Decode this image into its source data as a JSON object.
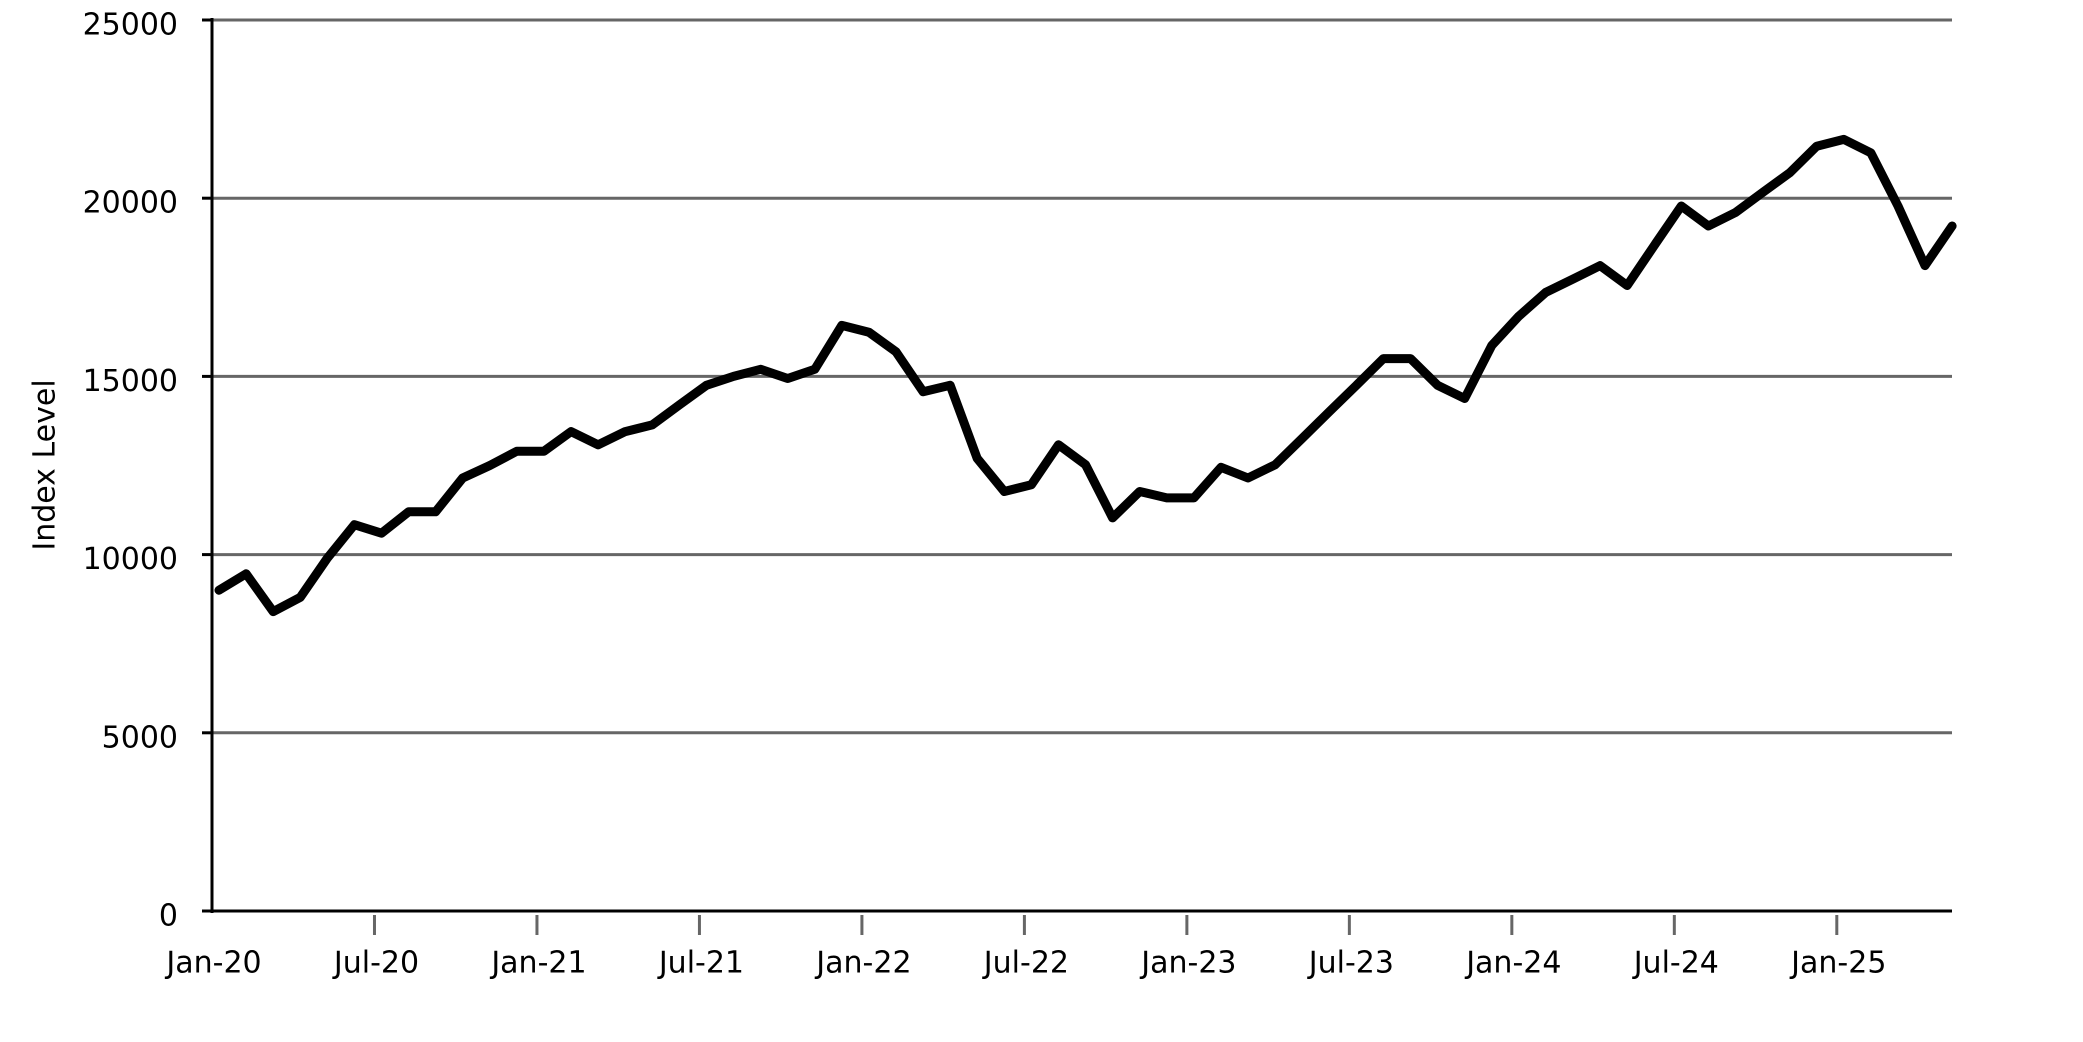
{
  "chart_data": {
    "type": "line",
    "y_label": "Index Level",
    "x": [
      "2020-01",
      "2020-02",
      "2020-03",
      "2020-04",
      "2020-05",
      "2020-06",
      "2020-07",
      "2020-08",
      "2020-09",
      "2020-10",
      "2020-11",
      "2020-12",
      "2021-01",
      "2021-02",
      "2021-03",
      "2021-04",
      "2021-05",
      "2021-06",
      "2021-07",
      "2021-08",
      "2021-09",
      "2021-10",
      "2021-11",
      "2021-12",
      "2022-01",
      "2022-02",
      "2022-03",
      "2022-04",
      "2022-05",
      "2022-06",
      "2022-07",
      "2022-08",
      "2022-09",
      "2022-10",
      "2022-11",
      "2022-12",
      "2023-01",
      "2023-02",
      "2023-03",
      "2023-04",
      "2023-05",
      "2023-06",
      "2023-07",
      "2023-08",
      "2023-09",
      "2023-10",
      "2023-11",
      "2023-12",
      "2024-01",
      "2024-02",
      "2024-03",
      "2024-04",
      "2024-05",
      "2024-06",
      "2024-07",
      "2024-08",
      "2024-09",
      "2024-10",
      "2024-11",
      "2024-12",
      "2025-01",
      "2025-02",
      "2025-03",
      "2025-04",
      "2025-05"
    ],
    "series": [
      {
        "name": "Index Level",
        "color": "#000000",
        "values": [
          9000,
          9460,
          8400,
          8800,
          9900,
          10840,
          10600,
          11200,
          11200,
          12150,
          12500,
          12900,
          12900,
          13450,
          13080,
          13450,
          13640,
          14200,
          14750,
          15000,
          15200,
          14940,
          15200,
          16430,
          16240,
          15690,
          14570,
          14750,
          12700,
          11770,
          11960,
          13080,
          12520,
          11030,
          11770,
          11590,
          11590,
          12450,
          12150,
          12520,
          13260,
          14010,
          14750,
          15500,
          15500,
          14750,
          14380,
          15870,
          16690,
          17360,
          17730,
          18110,
          17550,
          18670,
          19780,
          19220,
          19600,
          20160,
          20710,
          21460,
          21650,
          21270,
          19780,
          18110,
          19220
        ]
      }
    ],
    "xticks": [
      {
        "value": "2020-01",
        "label": "Jan-20"
      },
      {
        "value": "2020-07",
        "label": "Jul-20"
      },
      {
        "value": "2021-01",
        "label": "Jan-21"
      },
      {
        "value": "2021-07",
        "label": "Jul-21"
      },
      {
        "value": "2022-01",
        "label": "Jan-22"
      },
      {
        "value": "2022-07",
        "label": "Jul-22"
      },
      {
        "value": "2023-01",
        "label": "Jan-23"
      },
      {
        "value": "2023-07",
        "label": "Jul-23"
      },
      {
        "value": "2024-01",
        "label": "Jan-24"
      },
      {
        "value": "2024-07",
        "label": "Jul-24"
      },
      {
        "value": "2025-01",
        "label": "Jan-25"
      }
    ],
    "ylim": [
      0,
      25000
    ],
    "yticks": [
      0,
      5000,
      10000,
      15000,
      20000,
      25000
    ],
    "grid": true
  }
}
